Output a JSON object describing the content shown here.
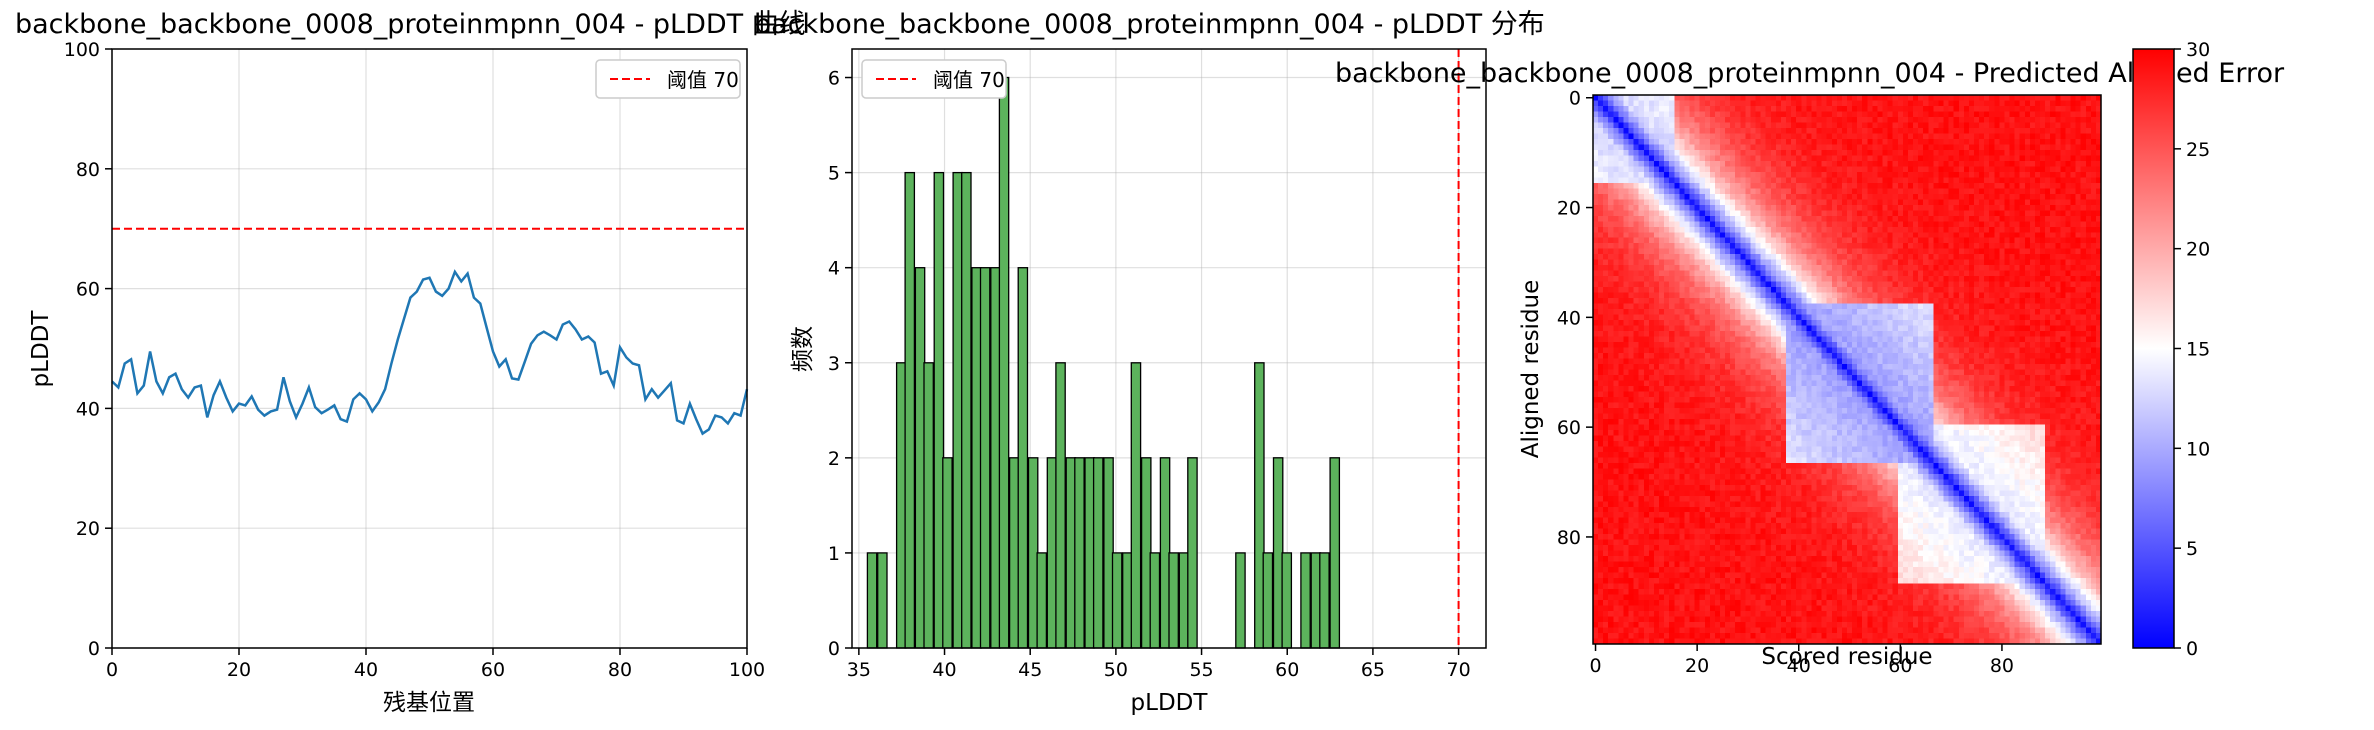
{
  "chart_data": [
    {
      "type": "line",
      "title": "backbone_backbone_0008_proteinmpnn_004 - pLDDT 曲线",
      "xlabel": "残基位置",
      "ylabel": "pLDDT",
      "xlim": [
        0,
        100
      ],
      "ylim": [
        0,
        100
      ],
      "xticks": [
        0,
        20,
        40,
        60,
        80,
        100
      ],
      "yticks": [
        0,
        20,
        40,
        60,
        80,
        100
      ],
      "grid": true,
      "legend_position": "top-right",
      "threshold": {
        "label": "阈值 70",
        "value": 70,
        "color": "#ff0000"
      },
      "series": [
        {
          "color": "#1f77b4",
          "x": [
            0,
            1,
            2,
            3,
            4,
            5,
            6,
            7,
            8,
            9,
            10,
            11,
            12,
            13,
            14,
            15,
            16,
            17,
            18,
            19,
            20,
            21,
            22,
            23,
            24,
            25,
            26,
            27,
            28,
            29,
            30,
            31,
            32,
            33,
            34,
            35,
            36,
            37,
            38,
            39,
            40,
            41,
            42,
            43,
            44,
            45,
            46,
            47,
            48,
            49,
            50,
            51,
            52,
            53,
            54,
            55,
            56,
            57,
            58,
            59,
            60,
            61,
            62,
            63,
            64,
            65,
            66,
            67,
            68,
            69,
            70,
            71,
            72,
            73,
            74,
            75,
            76,
            77,
            78,
            79,
            80,
            81,
            82,
            83,
            84,
            85,
            86,
            87,
            88,
            89,
            90,
            91,
            92,
            93,
            94,
            95,
            96,
            97,
            98,
            99,
            100
          ],
          "values": [
            44.5,
            43.5,
            47.5,
            48.2,
            42.5,
            43.8,
            49.5,
            44.5,
            42.5,
            45.2,
            45.8,
            43.2,
            41.8,
            43.5,
            43.8,
            38.5,
            42.2,
            44.5,
            41.8,
            39.5,
            40.8,
            40.5,
            42.0,
            39.8,
            38.8,
            39.5,
            39.8,
            45.2,
            41.2,
            38.5,
            40.8,
            43.5,
            40.2,
            39.2,
            39.8,
            40.5,
            38.2,
            37.8,
            41.5,
            42.5,
            41.5,
            39.5,
            41.0,
            43.2,
            47.5,
            51.5,
            55.0,
            58.5,
            59.5,
            61.5,
            61.8,
            59.5,
            58.8,
            60.0,
            62.8,
            61.2,
            62.5,
            58.5,
            57.5,
            53.5,
            49.5,
            47.0,
            48.2,
            45.0,
            44.8,
            47.8,
            50.8,
            52.2,
            52.8,
            52.2,
            51.5,
            54.0,
            54.5,
            53.2,
            51.5,
            52.0,
            51.0,
            45.8,
            46.2,
            43.8,
            50.2,
            48.5,
            47.5,
            47.2,
            41.5,
            43.2,
            41.8,
            43.0,
            44.2,
            38.0,
            37.5,
            40.8,
            38.2,
            35.8,
            36.5,
            38.8,
            38.5,
            37.5,
            39.2,
            38.8,
            43.2
          ]
        }
      ]
    },
    {
      "type": "bar",
      "title": "backbone_backbone_0008_proteinmpnn_004 - pLDDT 分布",
      "xlabel": "pLDDT",
      "ylabel": "频数",
      "xlim": [
        34.6,
        71.6
      ],
      "ylim": [
        0,
        6.3
      ],
      "xticks": [
        35,
        40,
        45,
        50,
        55,
        60,
        65,
        70
      ],
      "yticks": [
        0,
        1,
        2,
        3,
        4,
        5,
        6
      ],
      "grid": true,
      "legend_position": "top-left",
      "bar_color": "#5cb35c",
      "bin_width": 0.545,
      "threshold": {
        "label": "阈值 70",
        "value": 70,
        "color": "#ff0000"
      },
      "bins": [
        {
          "x": 35.5,
          "count": 1
        },
        {
          "x": 36.1,
          "count": 1
        },
        {
          "x": 37.2,
          "count": 3
        },
        {
          "x": 37.7,
          "count": 5
        },
        {
          "x": 38.3,
          "count": 4
        },
        {
          "x": 38.8,
          "count": 3
        },
        {
          "x": 39.4,
          "count": 5
        },
        {
          "x": 39.9,
          "count": 2
        },
        {
          "x": 40.5,
          "count": 5
        },
        {
          "x": 41.0,
          "count": 5
        },
        {
          "x": 41.6,
          "count": 4
        },
        {
          "x": 42.1,
          "count": 4
        },
        {
          "x": 42.7,
          "count": 4
        },
        {
          "x": 43.2,
          "count": 6
        },
        {
          "x": 43.8,
          "count": 2
        },
        {
          "x": 44.3,
          "count": 4
        },
        {
          "x": 44.9,
          "count": 2
        },
        {
          "x": 45.4,
          "count": 1
        },
        {
          "x": 46.0,
          "count": 2
        },
        {
          "x": 46.5,
          "count": 3
        },
        {
          "x": 47.1,
          "count": 2
        },
        {
          "x": 47.6,
          "count": 2
        },
        {
          "x": 48.2,
          "count": 2
        },
        {
          "x": 48.7,
          "count": 2
        },
        {
          "x": 49.3,
          "count": 2
        },
        {
          "x": 49.8,
          "count": 1
        },
        {
          "x": 50.4,
          "count": 1
        },
        {
          "x": 50.9,
          "count": 3
        },
        {
          "x": 51.5,
          "count": 2
        },
        {
          "x": 52.0,
          "count": 1
        },
        {
          "x": 52.6,
          "count": 2
        },
        {
          "x": 53.1,
          "count": 1
        },
        {
          "x": 53.7,
          "count": 1
        },
        {
          "x": 54.2,
          "count": 2
        },
        {
          "x": 57.0,
          "count": 1
        },
        {
          "x": 58.1,
          "count": 3
        },
        {
          "x": 58.6,
          "count": 1
        },
        {
          "x": 59.2,
          "count": 2
        },
        {
          "x": 59.7,
          "count": 1
        },
        {
          "x": 60.8,
          "count": 1
        },
        {
          "x": 61.4,
          "count": 1
        },
        {
          "x": 61.9,
          "count": 1
        },
        {
          "x": 62.5,
          "count": 2
        }
      ]
    },
    {
      "type": "heatmap",
      "title": "backbone_backbone_0008_proteinmpnn_004 - Predicted Aligned Error",
      "xlabel": "Scored residue",
      "ylabel": "Aligned residue",
      "n": 100,
      "xticks": [
        0,
        20,
        40,
        60,
        80
      ],
      "yticks": [
        0,
        20,
        40,
        60,
        80
      ],
      "colormap": "bwr",
      "vmin": 0,
      "vmax": 30,
      "colorbar_ticks": [
        0,
        5,
        10,
        15,
        20,
        25,
        30
      ],
      "diagonal_value": 1,
      "far_value": 29,
      "ordered_regions": [
        {
          "start": 0,
          "end": 15,
          "value": 12
        },
        {
          "start": 38,
          "end": 66,
          "value": 9
        },
        {
          "start": 60,
          "end": 88,
          "value": 13
        }
      ]
    }
  ]
}
